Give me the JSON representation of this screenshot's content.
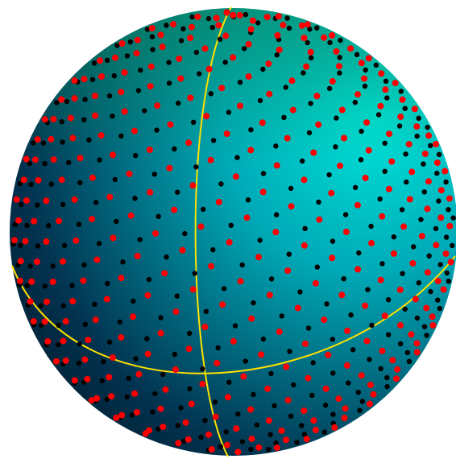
{
  "scene": {
    "background_color": "#ffffff",
    "sphere": {
      "highlight_color": "#00e6dc",
      "mid_color": "#00a9b6",
      "dark_color": "#02324f",
      "rim_color": "#021a2a"
    },
    "curves": {
      "color": "#ffe100",
      "items": [
        "meridian",
        "tilted-equator"
      ]
    },
    "point_sets": [
      {
        "id": "black",
        "color": "#000000"
      },
      {
        "id": "red",
        "color": "#ff0000"
      }
    ]
  }
}
